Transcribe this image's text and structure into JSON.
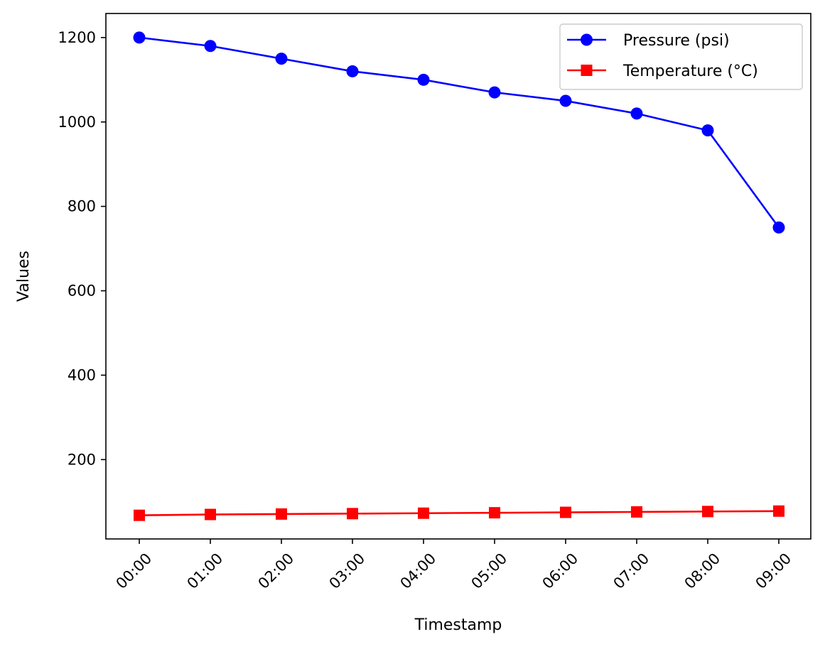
{
  "chart_data": {
    "type": "line",
    "title": "",
    "xlabel": "Timestamp",
    "ylabel": "Values",
    "categories": [
      "00:00",
      "01:00",
      "02:00",
      "03:00",
      "04:00",
      "05:00",
      "06:00",
      "07:00",
      "08:00",
      "09:00"
    ],
    "yticks": [
      200,
      400,
      600,
      800,
      1000,
      1200
    ],
    "ylim": [
      12,
      1257
    ],
    "grid": false,
    "legend_position": "top-right",
    "series": [
      {
        "name": "Pressure (psi)",
        "color": "#0000ff",
        "marker": "circle",
        "values": [
          1200,
          1180,
          1150,
          1120,
          1100,
          1070,
          1050,
          1020,
          980,
          750
        ]
      },
      {
        "name": "Temperature (°C)",
        "color": "#ff0000",
        "marker": "square",
        "values": [
          68,
          70,
          71,
          72,
          73,
          74,
          75,
          76,
          77,
          78
        ]
      }
    ]
  }
}
